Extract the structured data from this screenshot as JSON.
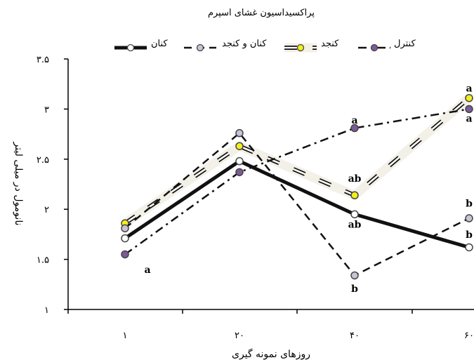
{
  "chart_data": {
    "type": "line",
    "title": "پراکسیداسیون غشای اسپرم",
    "xlabel": "روزهای نمونه گیری",
    "ylabel": "نانومول در میلی لیتر",
    "categories": [
      1,
      20,
      40,
      60
    ],
    "x_tick_labels": [
      "۱",
      "۲۰",
      "۴۰",
      "۶۰"
    ],
    "ylim": [
      1,
      3.5
    ],
    "y_ticks": [
      1,
      1.5,
      2,
      2.5,
      3,
      3.5
    ],
    "y_tick_labels": [
      "۱",
      "۱.۵",
      "۲",
      "۲.۵",
      "۳",
      "۳.۵"
    ],
    "grid": false,
    "legend_position": "top",
    "series": [
      {
        "name": "کنان",
        "values": [
          1.71,
          2.48,
          1.95,
          1.62
        ],
        "color": "#111111",
        "marker": "#ffffff",
        "style": "thick-solid"
      },
      {
        "name": "کنان و کنجد",
        "values": [
          1.81,
          2.76,
          1.34,
          1.91
        ],
        "color": "#111111",
        "marker": "#c9c3d6",
        "style": "dashed"
      },
      {
        "name": "کنجد",
        "values": [
          1.86,
          2.63,
          2.14,
          3.11
        ],
        "color": "#111111",
        "marker": "#f5ee1a",
        "style": "double"
      },
      {
        "name": "کنترل",
        "values": [
          1.55,
          2.37,
          2.81,
          3.0
        ],
        "color": "#111111",
        "marker": "#7b5b99",
        "style": "dash-dot"
      }
    ],
    "annotations": [
      {
        "text": "a",
        "category": 1,
        "y": 1.4
      },
      {
        "text": "a",
        "category": 40,
        "y": 2.89
      },
      {
        "text": "ab",
        "category": 40,
        "y": 2.31
      },
      {
        "text": "ab",
        "category": 40,
        "y": 1.85
      },
      {
        "text": "b",
        "category": 40,
        "y": 1.21
      },
      {
        "text": "a",
        "category": 60,
        "y": 3.21
      },
      {
        "text": "a",
        "category": 60,
        "y": 2.91
      },
      {
        "text": "b",
        "category": 60,
        "y": 2.06
      },
      {
        "text": "b",
        "category": 60,
        "y": 1.75
      }
    ]
  }
}
